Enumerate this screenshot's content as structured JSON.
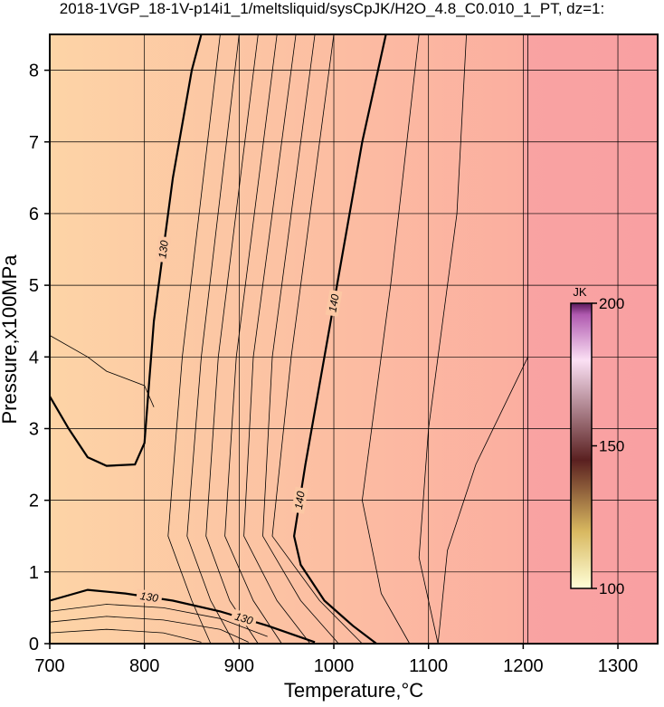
{
  "chart_data": {
    "type": "contour",
    "title": "2018-1VGP_18-1V-p14i1_1/meltsliquid/sysCpJK/H2O_4.8_C0.010_1_PT, dz=1:",
    "x_label": "Temperature,°C",
    "y_label": "Pressure,x100MPa",
    "xlim": [
      700,
      1342
    ],
    "ylim": [
      0,
      8.5
    ],
    "xticks": [
      700,
      800,
      900,
      1000,
      1100,
      1200,
      1300
    ],
    "yticks": [
      0,
      1,
      2,
      3,
      4,
      5,
      6,
      7,
      8
    ],
    "grid": true,
    "colorbar": {
      "label": "JK",
      "lim": [
        100,
        200
      ],
      "ticks": [
        100,
        150,
        200
      ]
    },
    "contours": [
      {
        "level": 130,
        "x": [
          700,
          720,
          740,
          760,
          790,
          800,
          810,
          830,
          850,
          860
        ],
        "y": [
          3.45,
          3.0,
          2.6,
          2.48,
          2.5,
          2.8,
          4.5,
          6.5,
          8.0,
          8.5
        ]
      },
      {
        "level": 140,
        "x": [
          1055,
          1030,
          1010,
          990,
          970,
          958,
          965,
          990,
          1020,
          1045
        ],
        "y": [
          8.5,
          7.0,
          5.5,
          4.0,
          2.5,
          1.5,
          1.1,
          0.6,
          0.25,
          0
        ]
      },
      {
        "level": 130,
        "x": [
          700,
          740,
          780,
          830,
          880,
          930,
          980
        ],
        "y": [
          0.6,
          0.75,
          0.7,
          0.6,
          0.45,
          0.25,
          0.02
        ]
      }
    ],
    "thin_contours": [
      {
        "x": [
          880,
          840,
          825,
          850,
          870
        ],
        "y": [
          8.5,
          4.0,
          1.5,
          0.6,
          0
        ]
      },
      {
        "x": [
          900,
          860,
          845,
          870,
          895
        ],
        "y": [
          8.5,
          4.0,
          1.5,
          0.6,
          0
        ]
      },
      {
        "x": [
          920,
          878,
          865,
          890,
          920
        ],
        "y": [
          8.5,
          4.0,
          1.5,
          0.6,
          0
        ]
      },
      {
        "x": [
          940,
          897,
          885,
          915,
          945
        ],
        "y": [
          8.5,
          4.0,
          1.5,
          0.6,
          0
        ]
      },
      {
        "x": [
          960,
          915,
          905,
          940,
          975
        ],
        "y": [
          8.5,
          4.0,
          1.5,
          0.6,
          0
        ]
      },
      {
        "x": [
          980,
          935,
          925,
          965,
          1005
        ],
        "y": [
          8.5,
          4.0,
          1.5,
          0.6,
          0
        ]
      },
      {
        "x": [
          1000,
          955,
          935,
          985,
          1030
        ],
        "y": [
          8.5,
          4.0,
          1.5,
          0.6,
          0
        ]
      },
      {
        "x": [
          1090,
          1060,
          1030,
          1050,
          1080
        ],
        "y": [
          8.5,
          5.0,
          2.0,
          0.7,
          0
        ]
      },
      {
        "x": [
          1140,
          1130,
          1100,
          1090,
          1110
        ],
        "y": [
          8.5,
          6.0,
          3.0,
          1.2,
          0
        ]
      },
      {
        "x": [
          1205,
          1150,
          1120,
          1110
        ],
        "y": [
          4.0,
          2.5,
          1.3,
          0
        ]
      },
      {
        "x": [
          1205,
          1205
        ],
        "y": [
          0,
          8.5
        ]
      },
      {
        "x": [
          700,
          760,
          820,
          880,
          930
        ],
        "y": [
          0.45,
          0.55,
          0.5,
          0.35,
          0.1
        ]
      },
      {
        "x": [
          700,
          760,
          820,
          880,
          910
        ],
        "y": [
          0.3,
          0.38,
          0.33,
          0.2,
          0.02
        ]
      },
      {
        "x": [
          700,
          760,
          820,
          860
        ],
        "y": [
          0.15,
          0.2,
          0.15,
          0.02
        ]
      },
      {
        "x": [
          700,
          740,
          760,
          800,
          810
        ],
        "y": [
          4.3,
          4.0,
          3.8,
          3.6,
          3.3
        ]
      }
    ]
  }
}
